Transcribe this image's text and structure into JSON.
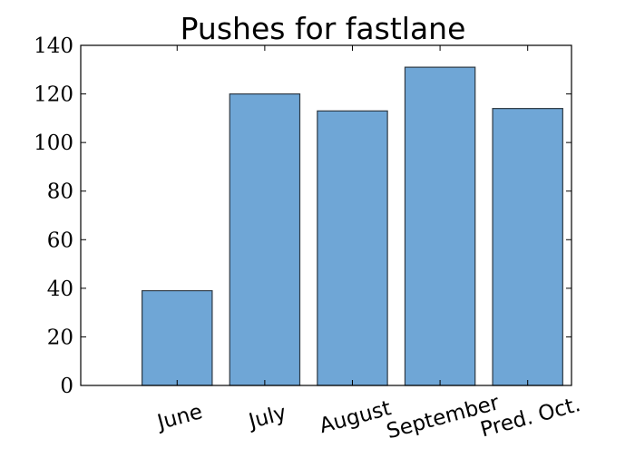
{
  "chart_data": {
    "type": "bar",
    "title": "Pushes for fastlane",
    "xlabel": "",
    "ylabel": "",
    "categories": [
      "June",
      "July",
      "August",
      "September",
      "Pred. Oct."
    ],
    "values": [
      39,
      120,
      113,
      131,
      114
    ],
    "ylim": [
      0,
      140
    ],
    "yticks": [
      "0",
      "20",
      "40",
      "60",
      "80",
      "100",
      "120",
      "140"
    ],
    "grid": false,
    "legend": "none",
    "colors": {
      "bar_fill": "#6fa6d6",
      "bar_edge": "#2f3a44",
      "axis": "#000000"
    }
  }
}
